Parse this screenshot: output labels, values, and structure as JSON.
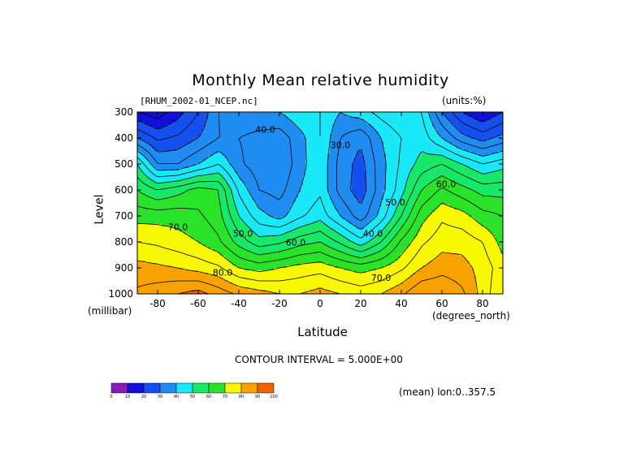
{
  "title": "Monthly Mean relative humidity",
  "file_label": "[RHUM_2002-01_NCEP.nc]",
  "units_label": "(units:%)",
  "y_axis_label": "Level",
  "y_axis_unit": "(millibar)",
  "x_axis_label": "Latitude",
  "x_axis_unit": "(degrees_north)",
  "contour_note": "CONTOUR INTERVAL = 5.000E+00",
  "mean_note": "(mean) lon:0..357.5",
  "chart_data": {
    "type": "heatmap",
    "title": "Monthly Mean relative humidity",
    "xlabel": "Latitude",
    "ylabel": "Level",
    "x_unit": "degrees_north",
    "y_unit": "millibar",
    "xlim": [
      -90,
      90
    ],
    "ylim": [
      1000,
      300
    ],
    "x_ticks": [
      -80,
      -60,
      -40,
      -20,
      0,
      20,
      40,
      60,
      80
    ],
    "x_tick_labels": [
      "-80",
      "-60",
      "-40",
      "-20",
      "0",
      "20",
      "40",
      "60",
      "80"
    ],
    "y_ticks": [
      300,
      400,
      500,
      600,
      700,
      800,
      900,
      1000
    ],
    "y_tick_labels": [
      "300",
      "400",
      "500",
      "600",
      "700",
      "800",
      "900",
      "1000"
    ],
    "contour_interval": 5,
    "contour_labels": [
      {
        "text": "40.0",
        "lat": -27,
        "lev": 370
      },
      {
        "text": "30.0",
        "lat": 10,
        "lev": 430
      },
      {
        "text": "50.0",
        "lat": 37,
        "lev": 650
      },
      {
        "text": "60.0",
        "lat": 62,
        "lev": 580
      },
      {
        "text": "70.0",
        "lat": -70,
        "lev": 745
      },
      {
        "text": "50.0",
        "lat": -38,
        "lev": 770
      },
      {
        "text": "40.0",
        "lat": 26,
        "lev": 770
      },
      {
        "text": "60.0",
        "lat": -12,
        "lev": 805
      },
      {
        "text": "80.0",
        "lat": -48,
        "lev": 920
      },
      {
        "text": "70.0",
        "lat": 30,
        "lev": 940
      }
    ],
    "latitude": [
      -90,
      -80,
      -70,
      -60,
      -50,
      -40,
      -30,
      -20,
      -10,
      0,
      10,
      20,
      30,
      40,
      50,
      60,
      70,
      80,
      90
    ],
    "levels": [
      300,
      400,
      500,
      600,
      700,
      800,
      900,
      1000
    ],
    "values": [
      [
        15,
        12,
        18,
        25,
        35,
        40,
        40,
        40,
        44,
        45,
        40,
        43,
        47,
        50,
        45,
        30,
        20,
        15,
        20
      ],
      [
        30,
        24,
        26,
        30,
        35,
        35,
        33,
        32,
        38,
        45,
        35,
        31,
        40,
        45,
        48,
        40,
        32,
        28,
        32
      ],
      [
        50,
        35,
        35,
        40,
        45,
        36,
        32,
        30,
        38,
        44,
        33,
        28,
        38,
        46,
        52,
        55,
        50,
        45,
        48
      ],
      [
        60,
        55,
        58,
        62,
        60,
        44,
        35,
        33,
        40,
        44,
        33,
        27,
        38,
        48,
        60,
        66,
        62,
        58,
        58
      ],
      [
        68,
        68,
        68,
        66,
        62,
        50,
        42,
        38,
        44,
        48,
        40,
        32,
        42,
        55,
        68,
        74,
        72,
        67,
        65
      ],
      [
        75,
        74,
        72,
        70,
        66,
        58,
        52,
        54,
        58,
        60,
        54,
        47,
        55,
        66,
        74,
        78,
        78,
        75,
        68
      ],
      [
        82,
        81,
        80,
        78,
        76,
        70,
        68,
        70,
        72,
        73,
        70,
        68,
        70,
        74,
        80,
        83,
        82,
        78,
        72
      ],
      [
        86,
        88,
        90,
        92,
        88,
        84,
        82,
        80,
        80,
        82,
        80,
        78,
        80,
        84,
        90,
        90,
        86,
        78,
        70
      ]
    ],
    "colorbar": {
      "ticks": [
        0,
        10,
        20,
        30,
        40,
        50,
        60,
        70,
        80,
        90,
        100
      ],
      "tick_labels": [
        "0",
        "10",
        "20",
        "30",
        "40",
        "50",
        "60",
        "70",
        "80",
        "90",
        "100"
      ],
      "colors": [
        "#8a1cb8",
        "#1010d8",
        "#1450f0",
        "#1e8cf0",
        "#18e8f8",
        "#18e868",
        "#2ae228",
        "#f8f800",
        "#f8a200",
        "#f06400",
        "#f80000"
      ]
    }
  }
}
